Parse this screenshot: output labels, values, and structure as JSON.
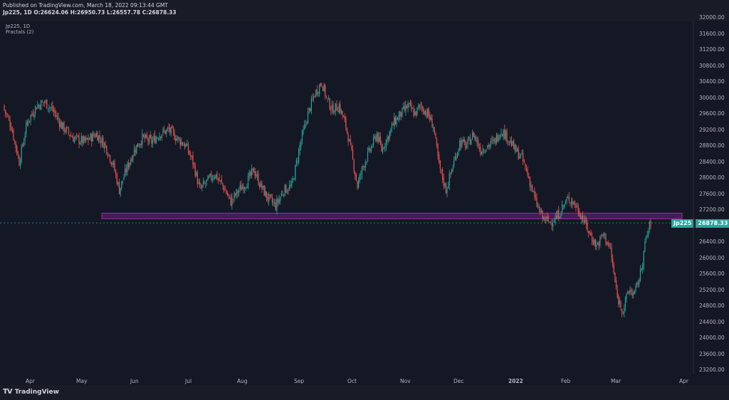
{
  "header": {
    "published": "Published on TradingView.com, March 18, 2022 09:13:44 GMT",
    "ohlc": "Jp225, 1D O:26624.06 H:26950.73 L:26557.78 C:26878.33"
  },
  "legend": {
    "symbol": "Jp225, 1D",
    "indicator": "Fractals (2)"
  },
  "footer": {
    "brand": "TradingView",
    "brand_icon": "TV"
  },
  "price_tag": {
    "symbol": "Jp225",
    "value": "26878.33"
  },
  "colors": {
    "up": "#26a69a",
    "down": "#ef5350",
    "zone": "#9c27b0",
    "bg": "#141824"
  },
  "chart_data": {
    "type": "candlestick",
    "symbol": "Jp225",
    "interval": "1D",
    "last_close": 26878.33,
    "y_ticks": [
      "32000.00",
      "31600.00",
      "31200.00",
      "30800.00",
      "30400.00",
      "30000.00",
      "29600.00",
      "29200.00",
      "28800.00",
      "28400.00",
      "28000.00",
      "27600.00",
      "27200.00",
      "26800.00",
      "26400.00",
      "26000.00",
      "25600.00",
      "25200.00",
      "24800.00",
      "24400.00",
      "24000.00",
      "23600.00",
      "23200.00"
    ],
    "x_ticks": [
      "Apr",
      "May",
      "Jun",
      "Jul",
      "Aug",
      "Sep",
      "Oct",
      "Nov",
      "Dec",
      "2022",
      "Feb",
      "Mar",
      "Apr"
    ],
    "ylim": [
      23200,
      32000
    ],
    "support_zone": {
      "low": 26980,
      "high": 27120
    },
    "close_path": [
      [
        0,
        29700
      ],
      [
        6,
        29300
      ],
      [
        13,
        28400
      ],
      [
        20,
        29400
      ],
      [
        28,
        29800
      ],
      [
        35,
        29900
      ],
      [
        42,
        29700
      ],
      [
        50,
        29300
      ],
      [
        60,
        29000
      ],
      [
        70,
        28900
      ],
      [
        80,
        29100
      ],
      [
        88,
        28800
      ],
      [
        95,
        28300
      ],
      [
        100,
        27700
      ],
      [
        106,
        28200
      ],
      [
        113,
        28700
      ],
      [
        120,
        29000
      ],
      [
        128,
        28900
      ],
      [
        135,
        29100
      ],
      [
        143,
        29200
      ],
      [
        150,
        29000
      ],
      [
        158,
        28800
      ],
      [
        164,
        28400
      ],
      [
        170,
        27700
      ],
      [
        176,
        27900
      ],
      [
        183,
        28100
      ],
      [
        190,
        27800
      ],
      [
        197,
        27400
      ],
      [
        204,
        27700
      ],
      [
        211,
        27900
      ],
      [
        217,
        28200
      ],
      [
        223,
        27800
      ],
      [
        229,
        27500
      ],
      [
        236,
        27300
      ],
      [
        243,
        27700
      ],
      [
        250,
        27800
      ],
      [
        257,
        28800
      ],
      [
        264,
        29600
      ],
      [
        270,
        30100
      ],
      [
        276,
        30400
      ],
      [
        280,
        30000
      ],
      [
        285,
        29700
      ],
      [
        291,
        29800
      ],
      [
        297,
        29300
      ],
      [
        302,
        28600
      ],
      [
        307,
        27800
      ],
      [
        312,
        28300
      ],
      [
        318,
        28700
      ],
      [
        324,
        29100
      ],
      [
        328,
        28700
      ],
      [
        333,
        29000
      ],
      [
        339,
        29400
      ],
      [
        345,
        29600
      ],
      [
        351,
        29800
      ],
      [
        357,
        29600
      ],
      [
        362,
        29800
      ],
      [
        368,
        29600
      ],
      [
        373,
        29300
      ],
      [
        378,
        28300
      ],
      [
        384,
        27700
      ],
      [
        390,
        28300
      ],
      [
        396,
        28900
      ],
      [
        402,
        28800
      ],
      [
        408,
        29100
      ],
      [
        414,
        28700
      ],
      [
        420,
        28800
      ],
      [
        426,
        28900
      ],
      [
        432,
        29200
      ],
      [
        438,
        29000
      ],
      [
        444,
        28700
      ],
      [
        450,
        28500
      ],
      [
        456,
        28000
      ],
      [
        462,
        27400
      ],
      [
        468,
        27000
      ],
      [
        474,
        26900
      ],
      [
        480,
        27000
      ],
      [
        486,
        27300
      ],
      [
        491,
        27500
      ],
      [
        497,
        27300
      ],
      [
        503,
        27000
      ],
      [
        509,
        26600
      ],
      [
        515,
        26300
      ],
      [
        521,
        26600
      ],
      [
        527,
        26200
      ],
      [
        533,
        25000
      ],
      [
        538,
        24700
      ],
      [
        543,
        25200
      ],
      [
        548,
        25100
      ],
      [
        553,
        25600
      ],
      [
        558,
        26500
      ],
      [
        562,
        26878
      ]
    ]
  }
}
